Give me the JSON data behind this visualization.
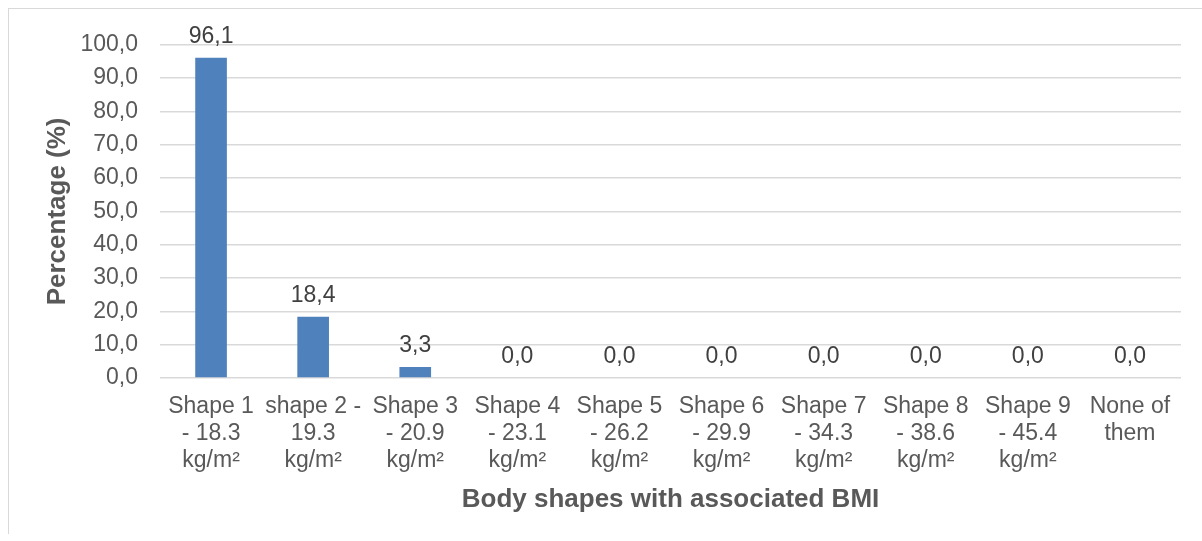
{
  "chart_data": {
    "type": "bar",
    "xlabel": "Body shapes with associated BMI",
    "ylabel": "Percentage (%)",
    "categories": [
      "Shape 1 - 18.3 kg/m²",
      "shape 2 - 19.3 kg/m²",
      "Shape 3 - 20.9 kg/m²",
      "Shape 4 - 23.1 kg/m²",
      "Shape 5 - 26.2 kg/m²",
      "Shape 6 - 29.9 kg/m²",
      "Shape 7 - 34.3 kg/m²",
      "Shape 8 - 38.6 kg/m²",
      "Shape 9 - 45.4 kg/m²",
      "None of them"
    ],
    "values": [
      96.1,
      18.4,
      3.3,
      0,
      0,
      0,
      0,
      0,
      0,
      0
    ],
    "color": "#4f81bd",
    "value_labels": [
      "96,1",
      "18,4",
      "3,3",
      "0,0",
      "0,0",
      "0,0",
      "0,0",
      "0,0",
      "0,0",
      "0,0"
    ],
    "ylim": [
      0,
      100
    ],
    "yticks": [
      {
        "value": 0,
        "label": "0,0"
      },
      {
        "value": 10,
        "label": "10,0"
      },
      {
        "value": 20,
        "label": "20,0"
      },
      {
        "value": 30,
        "label": "30,0"
      },
      {
        "value": 40,
        "label": "40,0"
      },
      {
        "value": 50,
        "label": "50,0"
      },
      {
        "value": 60,
        "label": "60,0"
      },
      {
        "value": 70,
        "label": "70,0"
      },
      {
        "value": 80,
        "label": "80,0"
      },
      {
        "value": 90,
        "label": "90,0"
      },
      {
        "value": 100,
        "label": "100,0"
      }
    ],
    "grid": "y"
  }
}
